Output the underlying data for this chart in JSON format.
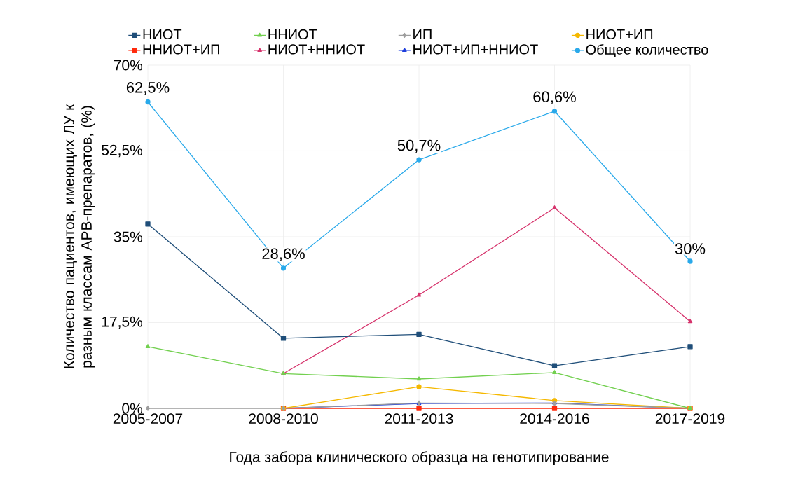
{
  "chart_data": {
    "type": "line",
    "xlabel": "Года забора клинического образца на генотипирование",
    "ylabel": "Количество пациентов, имеющих ЛУ к разным классам АРВ-препаратов, (%)",
    "categories": [
      "2005-2007",
      "2008-2010",
      "2011-2013",
      "2014-2016",
      "2017-2019"
    ],
    "ylim": [
      0,
      70
    ],
    "yticks": [
      {
        "value": 0,
        "label": "0%"
      },
      {
        "value": 17.5,
        "label": "17,5%"
      },
      {
        "value": 35,
        "label": "35%"
      },
      {
        "value": 52.5,
        "label": "52,5%"
      },
      {
        "value": 70,
        "label": "70%"
      }
    ],
    "grid": true,
    "legend": "top",
    "series": [
      {
        "name": "НИОТ",
        "color": "#1f4e79",
        "marker": "square",
        "values": [
          37.6,
          14.3,
          15.1,
          8.7,
          12.6
        ]
      },
      {
        "name": "ННИОТ",
        "color": "#72d04f",
        "marker": "triangle",
        "values": [
          12.6,
          7.1,
          6.0,
          7.3,
          0
        ]
      },
      {
        "name": "ИП",
        "color": "#9e9e9e",
        "marker": "diamond",
        "values": [
          0,
          0,
          1.1,
          1.0,
          0
        ]
      },
      {
        "name": "НИОТ+ИП",
        "color": "#f5b800",
        "marker": "circle",
        "values": [
          null,
          0,
          4.4,
          1.6,
          0
        ]
      },
      {
        "name": "ННИОТ+ИП",
        "color": "#ff2a0c",
        "marker": "square",
        "values": [
          null,
          0,
          0,
          0,
          0
        ]
      },
      {
        "name": "НИОТ+ННИОТ",
        "color": "#d6336c",
        "marker": "triangle",
        "values": [
          null,
          7.1,
          23.1,
          40.9,
          17.7
        ]
      },
      {
        "name": "НИОТ+ИП+ННИОТ",
        "color": "#1f3fdc",
        "marker": "triangle",
        "values": [
          null,
          0,
          1.0,
          1.1,
          0
        ]
      },
      {
        "name": "Общее количество",
        "color": "#29a9ea",
        "marker": "circle",
        "values": [
          62.5,
          28.6,
          50.7,
          60.6,
          30
        ],
        "value_labels": [
          "62,5%",
          "28,6%",
          "50,7%",
          "60,6%",
          "30%"
        ]
      }
    ]
  }
}
